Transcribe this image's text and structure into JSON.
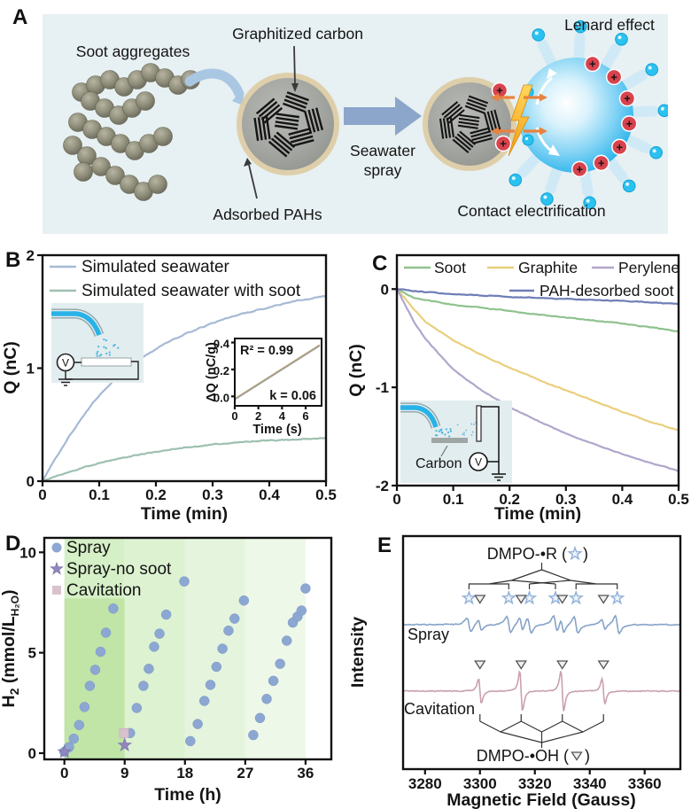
{
  "panels": {
    "a": {
      "label": "A",
      "soot_aggregates": "Soot aggregates",
      "graphitized_carbon": "Graphitized carbon",
      "adsorbed_pahs": "Adsorbed PAHs",
      "seawater_spray_line1": "Seawater",
      "seawater_spray_line2": "spray",
      "lenard_effect": "Lenard effect",
      "contact_electrification": "Contact electrification",
      "plus_sign": "+",
      "colors": {
        "panel_bg": "#e7f0f2",
        "soot_sphere": "#8f8e7b",
        "particle_rim": "#ddcba2",
        "big_arrow": "#8ba6ca",
        "curved_arrow": "#a9c7e3",
        "droplet": "#2eb5ec",
        "ejected_droplet": "#2cc2ef",
        "plus_badge": "#d8434e",
        "bolt": "#f59d0e",
        "contact_arrow": "#e8823f"
      }
    },
    "b": {
      "label": "B"
    },
    "c": {
      "label": "C"
    },
    "d": {
      "label": "D"
    },
    "e": {
      "label": "E"
    }
  },
  "chart_data": [
    {
      "id": "B",
      "type": "line",
      "xlabel": "Time (min)",
      "ylabel": "Q (nC)",
      "xlim": [
        0,
        0.5
      ],
      "ylim": [
        0,
        2
      ],
      "xtick_values": [
        0,
        0.1,
        0.2,
        0.3,
        0.4,
        0.5
      ],
      "xtick_labels": [
        "0",
        "0.1",
        "0.2",
        "0.3",
        "0.4",
        "0.5"
      ],
      "ytick_values": [
        0,
        1,
        2
      ],
      "ytick_labels": [
        "0",
        "1",
        "2"
      ],
      "grid": false,
      "legend_position": "top-left",
      "series": [
        {
          "name": "Simulated seawater",
          "color": "#a6bad5",
          "x": [
            0,
            0.025,
            0.05,
            0.075,
            0.1,
            0.125,
            0.15,
            0.175,
            0.2,
            0.225,
            0.25,
            0.275,
            0.3,
            0.325,
            0.35,
            0.375,
            0.4,
            0.425,
            0.45,
            0.475,
            0.5
          ],
          "y": [
            0,
            0.22,
            0.42,
            0.6,
            0.76,
            0.89,
            1.0,
            1.09,
            1.17,
            1.24,
            1.3,
            1.35,
            1.4,
            1.44,
            1.48,
            1.51,
            1.54,
            1.57,
            1.6,
            1.62,
            1.64
          ]
        },
        {
          "name": "Simulated seawater with soot",
          "color": "#9ec0b0",
          "x": [
            0,
            0.025,
            0.05,
            0.075,
            0.1,
            0.125,
            0.15,
            0.175,
            0.2,
            0.225,
            0.25,
            0.275,
            0.3,
            0.325,
            0.35,
            0.375,
            0.4,
            0.425,
            0.45,
            0.475,
            0.5
          ],
          "y": [
            0,
            0.045,
            0.085,
            0.125,
            0.16,
            0.19,
            0.215,
            0.24,
            0.26,
            0.28,
            0.295,
            0.31,
            0.325,
            0.335,
            0.345,
            0.355,
            0.36,
            0.365,
            0.37,
            0.375,
            0.38
          ]
        }
      ],
      "inset_schematic": {
        "voltmeter_label": "V"
      },
      "inset_chart": {
        "xlabel": "Time (s)",
        "ylabel": "ΔQ (nC/g)",
        "xlim": [
          0,
          7.35
        ],
        "ylim": [
          -0.07,
          0.43
        ],
        "xtick_values": [
          0,
          2,
          4,
          6
        ],
        "xtick_labels": [
          "0",
          "2",
          "4",
          "6"
        ],
        "ytick_values": [
          0.0,
          0.2,
          0.4
        ],
        "ytick_labels": [
          "0.0",
          "0.2",
          "0.4"
        ],
        "r_squared_label": "R² = 0.99",
        "slope_label": "k = 0.06",
        "fit_line": {
          "x": [
            0,
            7.2
          ],
          "y": [
            -0.02,
            0.38
          ],
          "color": "#b5a178"
        }
      }
    },
    {
      "id": "C",
      "type": "line",
      "xlabel": "Time (min)",
      "ylabel": "Q (nC)",
      "xlim": [
        0,
        0.5
      ],
      "ylim": [
        -2,
        0.345
      ],
      "xtick_values": [
        0,
        0.1,
        0.2,
        0.3,
        0.4,
        0.5
      ],
      "xtick_labels": [
        "0",
        "0.1",
        "0.2",
        "0.3",
        "0.4",
        "0.5"
      ],
      "ytick_values": [
        0,
        -1,
        -2
      ],
      "ytick_labels": [
        "0",
        "-1",
        "-2"
      ],
      "grid": false,
      "legend_position": "top",
      "series": [
        {
          "name": "Soot",
          "color": "#8fc28e",
          "x": [
            0,
            0.03,
            0.05,
            0.1,
            0.15,
            0.2,
            0.25,
            0.3,
            0.35,
            0.4,
            0.45,
            0.5
          ],
          "y": [
            0,
            -0.09,
            -0.11,
            -0.16,
            -0.19,
            -0.22,
            -0.26,
            -0.29,
            -0.32,
            -0.35,
            -0.39,
            -0.43
          ]
        },
        {
          "name": "Graphite",
          "color": "#e9cf7c",
          "x": [
            0,
            0.03,
            0.05,
            0.1,
            0.15,
            0.2,
            0.25,
            0.3,
            0.35,
            0.4,
            0.45,
            0.5
          ],
          "y": [
            0,
            -0.2,
            -0.33,
            -0.52,
            -0.67,
            -0.8,
            -0.92,
            -1.03,
            -1.14,
            -1.25,
            -1.35,
            -1.44
          ]
        },
        {
          "name": "Perylene",
          "color": "#b1a6cb",
          "x": [
            0,
            0.03,
            0.05,
            0.1,
            0.15,
            0.2,
            0.25,
            0.3,
            0.35,
            0.4,
            0.45,
            0.5
          ],
          "y": [
            0,
            -0.33,
            -0.5,
            -0.82,
            -1.03,
            -1.2,
            -1.34,
            -1.47,
            -1.58,
            -1.68,
            -1.77,
            -1.85
          ]
        },
        {
          "name": "PAH-desorbed soot",
          "color": "#6e7eb5",
          "x": [
            0,
            0.05,
            0.1,
            0.2,
            0.3,
            0.4,
            0.5
          ],
          "y": [
            0,
            -0.03,
            -0.05,
            -0.08,
            -0.1,
            -0.12,
            -0.15
          ]
        }
      ],
      "inset_schematic": {
        "carbon_label": "Carbon",
        "voltmeter_label": "V"
      }
    },
    {
      "id": "D",
      "type": "scatter",
      "xlabel": "Time (h)",
      "ylabel_parts": {
        "main": "H",
        "main_sub": "2",
        "unit": " (mmol/L",
        "unit_sub": "H₂O",
        "unit_close": ")"
      },
      "xlim": [
        -3,
        39.85
      ],
      "ylim": [
        -0.31,
        10.72
      ],
      "xtick_values": [
        0,
        9,
        18,
        27,
        36
      ],
      "xtick_labels": [
        "0",
        "9",
        "18",
        "27",
        "36"
      ],
      "ytick_values": [
        0,
        5,
        10
      ],
      "ytick_labels": [
        "0",
        "5",
        "10"
      ],
      "bands": [
        {
          "x0": 0,
          "x1": 9,
          "color": "#d5efc6"
        },
        {
          "x0": 9,
          "x1": 18,
          "color": "#dcf2d1"
        },
        {
          "x0": 18,
          "x1": 27,
          "color": "#e5f5dd"
        },
        {
          "x0": 27,
          "x1": 36,
          "color": "#edf8e8"
        }
      ],
      "highlight_rect": {
        "x0": 0,
        "x1": 9,
        "y0": 0,
        "y1": 7.7,
        "color": "#c0e5a7"
      },
      "series": [
        {
          "name": "Spray",
          "marker": "circle",
          "color": "#8ca7d2",
          "points": [
            [
              0,
              0.07
            ],
            [
              0.7,
              0.3
            ],
            [
              1.4,
              0.72
            ],
            [
              2.2,
              1.4
            ],
            [
              3,
              2.3
            ],
            [
              3.8,
              3.35
            ],
            [
              4.6,
              4.15
            ],
            [
              5.4,
              5.05
            ],
            [
              6.2,
              6
            ],
            [
              7.3,
              7.2
            ],
            [
              9.8,
              1
            ],
            [
              10.8,
              2.25
            ],
            [
              11.8,
              3.35
            ],
            [
              12.6,
              4.2
            ],
            [
              13.4,
              5.3
            ],
            [
              14.2,
              5.95
            ],
            [
              15.2,
              6.9
            ],
            [
              17.9,
              8.55
            ],
            [
              18.8,
              0.6
            ],
            [
              19.9,
              1.45
            ],
            [
              20.9,
              2.6
            ],
            [
              21.8,
              3.4
            ],
            [
              22.7,
              4.3
            ],
            [
              23.6,
              5.2
            ],
            [
              24.5,
              6.1
            ],
            [
              25.4,
              6.7
            ],
            [
              26.8,
              7.6
            ],
            [
              28.2,
              0.9
            ],
            [
              29.2,
              1.75
            ],
            [
              30.2,
              2.7
            ],
            [
              31.2,
              3.6
            ],
            [
              32.2,
              4.45
            ],
            [
              33.2,
              5.6
            ],
            [
              34.1,
              6.5
            ],
            [
              34.8,
              6.8
            ],
            [
              35.4,
              7.1
            ],
            [
              36,
              8.2
            ]
          ]
        },
        {
          "name": "Spray-no soot",
          "marker": "star",
          "color": "#9187bd",
          "points": [
            [
              0,
              0.07
            ],
            [
              9,
              0.4
            ]
          ]
        },
        {
          "name": "Cavitation",
          "marker": "square",
          "color": "#d9c2ce",
          "points": [
            [
              8.9,
              1.0
            ]
          ]
        }
      ]
    },
    {
      "id": "E",
      "type": "line",
      "xlabel": "Magnetic Field (Gauss)",
      "ylabel": "Intensity",
      "xlim": [
        3272,
        3373
      ],
      "xtick_values": [
        3280,
        3300,
        3320,
        3340,
        3360
      ],
      "xtick_labels": [
        "3280",
        "3300",
        "3320",
        "3340",
        "3360"
      ],
      "traces": [
        {
          "name": "Spray",
          "color": "#86a3c7"
        },
        {
          "name": "Cavitation",
          "color": "#c9a1ac"
        }
      ],
      "dmpo_r": {
        "prefix": "DMPO-•R (",
        "suffix": ")",
        "positions": [
          3296,
          3310.5,
          3318,
          3327.5,
          3335,
          3350
        ]
      },
      "dmpo_oh": {
        "prefix": "DMPO-•OH (",
        "suffix": ")",
        "positions": [
          3300,
          3315,
          3330,
          3345
        ]
      }
    }
  ]
}
